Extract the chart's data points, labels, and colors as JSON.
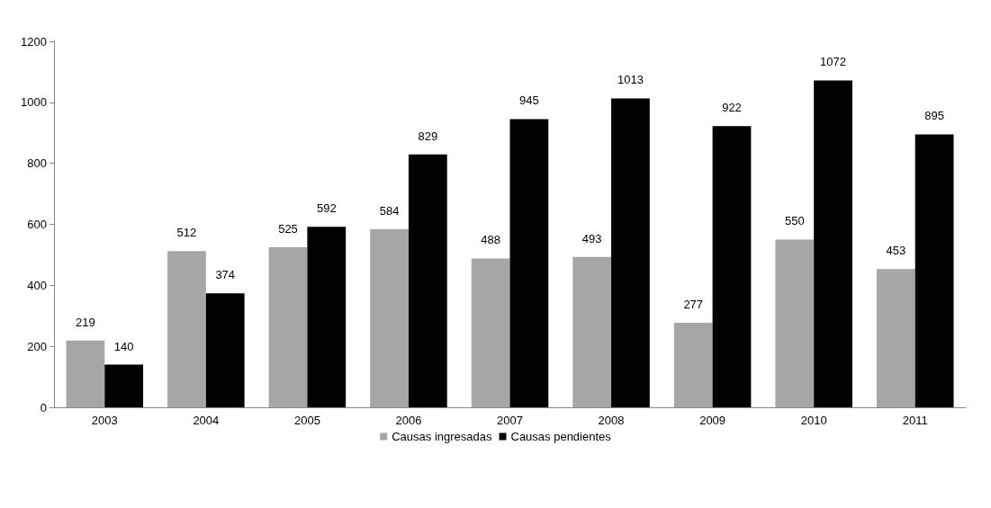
{
  "chart_data": {
    "type": "bar",
    "categories": [
      "2003",
      "2004",
      "2005",
      "2006",
      "2007",
      "2008",
      "2009",
      "2010",
      "2011"
    ],
    "series": [
      {
        "name": "Causas ingresadas",
        "color": "#a6a6a6",
        "values": [
          219,
          512,
          525,
          584,
          488,
          493,
          277,
          550,
          453
        ]
      },
      {
        "name": "Causas pendientes",
        "color": "#000000",
        "values": [
          140,
          374,
          592,
          829,
          945,
          1013,
          922,
          1072,
          895
        ]
      }
    ],
    "ylim": [
      0,
      1200
    ],
    "yticks": [
      0,
      200,
      400,
      600,
      800,
      1000,
      1200
    ],
    "grid": false,
    "legend": "bottom",
    "data_labels": true
  }
}
